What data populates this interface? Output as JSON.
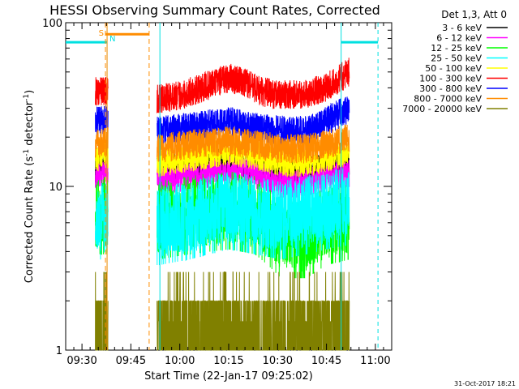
{
  "chart_data": {
    "type": "line",
    "title": "HESSI Observing Summary Count Rates, Corrected",
    "xlabel": "Start Time (22-Jan-17 09:25:02)",
    "ylabel_main": "Corrected Count Rate (s",
    "ylabel_sup1": "-1",
    "ylabel_mid": " detector",
    "ylabel_sup2": "-1",
    "ylabel_end": ")",
    "x_unit": "minutes after 09:25",
    "xlim": [
      0,
      100
    ],
    "ylim": [
      1,
      100
    ],
    "yscale": "log",
    "x_ticks": [
      {
        "x": 5,
        "label": "09:30"
      },
      {
        "x": 20,
        "label": "09:45"
      },
      {
        "x": 35,
        "label": "10:00"
      },
      {
        "x": 50,
        "label": "10:15"
      },
      {
        "x": 65,
        "label": "10:30"
      },
      {
        "x": 80,
        "label": "10:45"
      },
      {
        "x": 95,
        "label": "11:00"
      }
    ],
    "y_ticks": [
      {
        "y": 1,
        "label": "1"
      },
      {
        "y": 10,
        "label": "10"
      },
      {
        "y": 100,
        "label": "100"
      }
    ],
    "legend_title": "Det 1,3, Att 0",
    "timestamp": "31-Oct-2017 18:21",
    "data_gap": [
      13,
      28
    ],
    "series": [
      {
        "name": "3 - 6 keV",
        "color": "#000000",
        "points": [
          [
            9.1,
            13
          ],
          [
            13.5,
            15
          ],
          [
            28.5,
            12.5
          ],
          [
            38,
            13.5
          ],
          [
            50,
            14
          ],
          [
            58,
            13.5
          ],
          [
            66,
            12.5
          ],
          [
            74,
            12.5
          ],
          [
            80,
            13.5
          ],
          [
            87,
            14
          ]
        ]
      },
      {
        "name": "6 - 12 keV",
        "color": "#ff00ff",
        "points": [
          [
            9.1,
            11
          ],
          [
            13.5,
            12.5
          ],
          [
            28.5,
            11
          ],
          [
            38,
            11.5
          ],
          [
            50,
            12.5
          ],
          [
            58,
            12
          ],
          [
            66,
            10.5
          ],
          [
            74,
            10.5
          ],
          [
            80,
            11.5
          ],
          [
            87,
            12
          ]
        ]
      },
      {
        "name": "12 - 25 keV",
        "color": "#00ff00",
        "points": [
          [
            9.1,
            7
          ],
          [
            13.5,
            7
          ],
          [
            28.5,
            6.5
          ],
          [
            38,
            7
          ],
          [
            50,
            7.5
          ],
          [
            58,
            7
          ],
          [
            66,
            5
          ],
          [
            74,
            5
          ],
          [
            80,
            6
          ],
          [
            87,
            6.5
          ]
        ]
      },
      {
        "name": "25 - 50 keV",
        "color": "#00ffff",
        "points": [
          [
            9.1,
            6.5
          ],
          [
            13.5,
            6.5
          ],
          [
            28.5,
            6
          ],
          [
            38,
            6.5
          ],
          [
            50,
            7.5
          ],
          [
            58,
            7
          ],
          [
            66,
            6.5
          ],
          [
            74,
            7
          ],
          [
            80,
            7.5
          ],
          [
            87,
            8
          ]
        ]
      },
      {
        "name": "50 - 100 keV",
        "color": "#ffff00",
        "points": [
          [
            9.1,
            15
          ],
          [
            13.5,
            16
          ],
          [
            28.5,
            14
          ],
          [
            38,
            15
          ],
          [
            50,
            16.5
          ],
          [
            58,
            15.5
          ],
          [
            66,
            14
          ],
          [
            74,
            14
          ],
          [
            80,
            15
          ],
          [
            87,
            16.5
          ]
        ]
      },
      {
        "name": "100 - 300 keV",
        "color": "#ff0000",
        "points": [
          [
            9.1,
            38
          ],
          [
            13.5,
            39
          ],
          [
            28.5,
            34
          ],
          [
            35,
            36
          ],
          [
            42,
            40
          ],
          [
            50,
            46
          ],
          [
            55,
            43
          ],
          [
            60,
            38
          ],
          [
            66,
            36
          ],
          [
            74,
            37
          ],
          [
            80,
            40
          ],
          [
            87,
            50
          ]
        ]
      },
      {
        "name": "300 - 800 keV",
        "color": "#0000ff",
        "points": [
          [
            9.1,
            25
          ],
          [
            13.5,
            26
          ],
          [
            28.5,
            22
          ],
          [
            38,
            23
          ],
          [
            50,
            25
          ],
          [
            58,
            23
          ],
          [
            66,
            22
          ],
          [
            74,
            22
          ],
          [
            80,
            25
          ],
          [
            87,
            30
          ]
        ]
      },
      {
        "name": "800 - 7000 keV",
        "color": "#ff8c00",
        "points": [
          [
            9.1,
            18
          ],
          [
            13.5,
            19
          ],
          [
            28.5,
            17
          ],
          [
            38,
            18
          ],
          [
            50,
            19
          ],
          [
            58,
            18
          ],
          [
            66,
            17
          ],
          [
            74,
            17
          ],
          [
            80,
            18
          ],
          [
            87,
            20
          ]
        ]
      },
      {
        "name": "7000 - 20000 keV",
        "color": "#808000",
        "points": [
          [
            9.1,
            1.5
          ],
          [
            13.5,
            1.5
          ],
          [
            28.5,
            1.5
          ],
          [
            40,
            1.5
          ],
          [
            52,
            1.8
          ],
          [
            60,
            1.4
          ],
          [
            70,
            1.2
          ],
          [
            80,
            1.5
          ],
          [
            87,
            2.2
          ]
        ]
      }
    ],
    "saa": {
      "label_s": "S",
      "label_n": "N",
      "s_x": [
        12.2,
        25.6
      ],
      "n_x": [
        12.7
      ]
    },
    "night": [
      {
        "x": [
          0,
          12.7
        ],
        "y": 76
      },
      {
        "x": [
          84.5,
          95.8
        ],
        "y": 76
      }
    ],
    "night_dashed_x": 95.8,
    "night_solid_x": [
      12.7,
      28.9,
      84.5
    ],
    "saa_y": 85
  }
}
